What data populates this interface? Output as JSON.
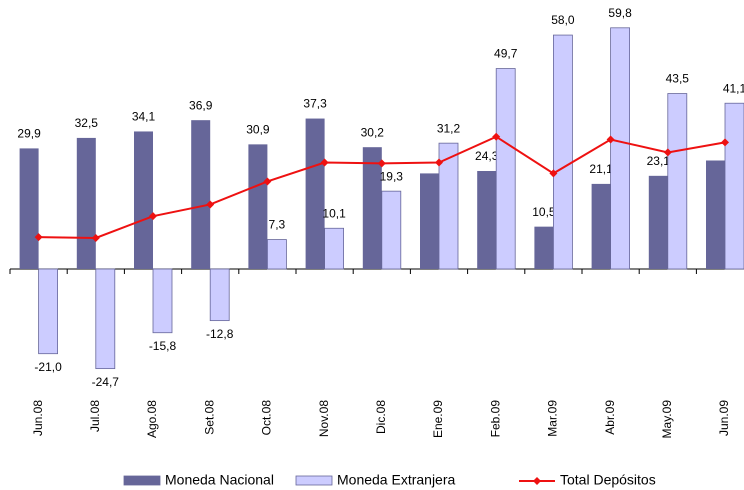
{
  "chart_data": {
    "type": "bar-line",
    "categories": [
      "Jun.08",
      "Jul.08",
      "Ago.08",
      "Set.08",
      "Oct.08",
      "Nov.08",
      "Dic.08",
      "Ene.09",
      "Feb.09",
      "Mar.09",
      "Abr.09",
      "May.09",
      "Jun.09"
    ],
    "series": [
      {
        "name": "Moneda Nacional",
        "type": "bar",
        "color": "#666699",
        "values": [
          29.9,
          32.5,
          34.1,
          36.9,
          30.9,
          37.3,
          30.2,
          23.7,
          24.3,
          10.5,
          21.1,
          23.1,
          26.9
        ],
        "value_labels": [
          "29,9",
          "32,5",
          "34,1",
          "36,9",
          "30,9",
          "37,3",
          "30,2",
          null,
          "24,3",
          "10,5",
          "21,1",
          "23,1",
          null
        ]
      },
      {
        "name": "Moneda Extranjera",
        "type": "bar",
        "color": "#ccccff",
        "values": [
          -21.0,
          -24.7,
          -15.8,
          -12.8,
          7.3,
          10.1,
          19.3,
          31.2,
          49.7,
          58.0,
          59.8,
          43.5,
          41.1
        ],
        "value_labels": [
          "-21,0",
          "-24,7",
          "-15,8",
          "-12,8",
          "7,3",
          "10,1",
          "19,3",
          "31,2",
          "49,7",
          "58,0",
          "59,8",
          "43,5",
          "41,1"
        ]
      },
      {
        "name": "Total Depósitos",
        "type": "line",
        "color": "#ee1111",
        "values": [
          7.9,
          7.7,
          13.1,
          16.0,
          21.7,
          26.4,
          26.2,
          26.4,
          32.8,
          23.7,
          32.1,
          28.9,
          31.4
        ]
      }
    ],
    "ylim": [
      -30,
      60
    ]
  }
}
